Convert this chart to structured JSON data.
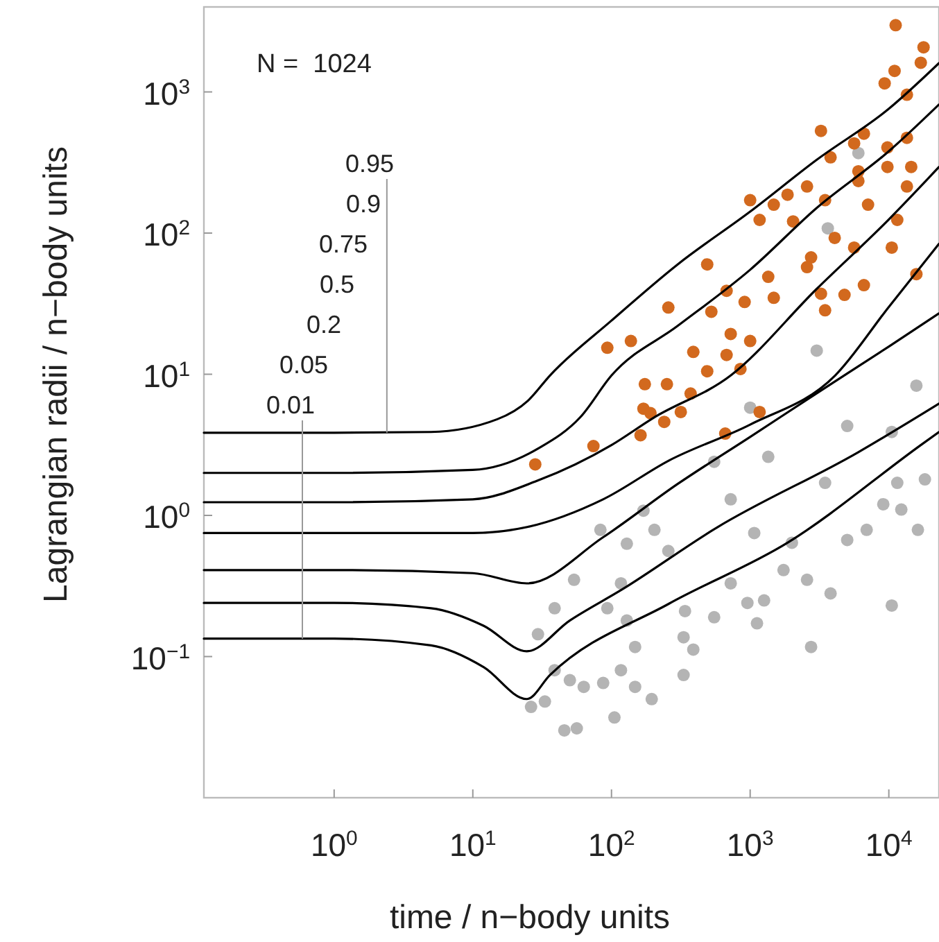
{
  "chart_data": {
    "type": "line",
    "xlabel": "time / n−body units",
    "ylabel": "Lagrangian radii / n−body units",
    "log": "xy",
    "grid": false,
    "line_style": "solid",
    "xlim": [
      0.115,
      23000
    ],
    "ylim": [
      0.01,
      4000
    ],
    "xticks": [
      {
        "value": 1,
        "label": "10$^{0}$"
      },
      {
        "value": 10,
        "label": "10$^{1}$"
      },
      {
        "value": 100,
        "label": "10$^{2}$"
      },
      {
        "value": 1000,
        "label": "10$^{3}$"
      },
      {
        "value": 10000,
        "label": "10$^{4}$"
      }
    ],
    "yticks": [
      {
        "value": 0.1,
        "label": "10$^{−1}$"
      },
      {
        "value": 1,
        "label": "10$^{0}$"
      },
      {
        "value": 10,
        "label": "10$^{1}$"
      },
      {
        "value": 100,
        "label": "10$^{2}$"
      },
      {
        "value": 1000,
        "label": "10$^{3}$"
      }
    ],
    "annotations": [
      "N =  1024",
      {
        "text": "0.95",
        "x": 2.4,
        "y": 3.85
      },
      "0.9",
      "0.75",
      "0.5",
      "0.2",
      "0.05",
      {
        "text": "0.01",
        "x": 0.59,
        "y": 0.134
      }
    ],
    "series": [
      {
        "type": "scatter",
        "marker": "circle",
        "color": "#b4b4b4",
        "x": [
          6030,
          3630,
          3020,
          15800,
          1000,
          5010,
          10500,
          1350,
          550,
          724,
          3470,
          18200,
          9120,
          12300,
          11500,
          16200,
          5010,
          6920,
          204,
          83.2,
          170,
          129,
          257,
          1070,
          2000,
          2570,
          3800,
          1740,
          10500,
          2750,
          1120,
          955,
          550,
          339,
          331,
          389,
          117,
          93.3,
          53.7,
          38.9,
          29.5,
          129,
          148,
          117,
          331,
          148,
          87.1,
          63.1,
          50.1,
          38.9,
          195,
          105,
          45.7,
          56.2,
          26.3,
          33.1,
          724,
          1260
        ],
        "values": [
          369,
          108,
          14.7,
          8.3,
          5.8,
          4.3,
          3.9,
          2.6,
          2.4,
          1.3,
          1.7,
          1.8,
          1.2,
          1.1,
          1.7,
          0.79,
          0.67,
          0.79,
          0.79,
          0.79,
          1.08,
          0.63,
          0.56,
          0.75,
          0.64,
          0.35,
          0.28,
          0.41,
          0.23,
          0.117,
          0.172,
          0.24,
          0.19,
          0.21,
          0.137,
          0.112,
          0.33,
          0.22,
          0.35,
          0.22,
          0.144,
          0.18,
          0.117,
          0.08,
          0.074,
          0.061,
          0.065,
          0.061,
          0.068,
          0.08,
          0.05,
          0.037,
          0.03,
          0.031,
          0.044,
          0.048,
          0.33,
          0.25
        ]
      },
      {
        "type": "scatter",
        "marker": "circle",
        "color": "#d2691e",
        "x": [
          11200,
          17800,
          17000,
          11000,
          9330,
          13500,
          3240,
          6610,
          5620,
          13500,
          9770,
          3800,
          6030,
          9770,
          14500,
          2570,
          1860,
          1000,
          1480,
          1170,
          3470,
          6030,
          13500,
          7080,
          11500,
          2040,
          4070,
          2750,
          5620,
          10500,
          2570,
          490,
          1350,
          3240,
          4790,
          6610,
          15800,
          676,
          912,
          257,
          525,
          3470,
          1480,
          724,
          1000,
          93.3,
          138,
          389,
          676,
          490,
          851,
          174,
          251,
          372,
          170,
          191,
          316,
          240,
          162,
          74.1,
          28.2,
          661,
          1170
        ],
        "values": [
          2970,
          2070,
          1610,
          1410,
          1150,
          955,
          530,
          506,
          432,
          473,
          404,
          344,
          274,
          294,
          294,
          214,
          187,
          171,
          159,
          124,
          171,
          234,
          214,
          159,
          124,
          121,
          92.5,
          67.3,
          78.9,
          78.9,
          57.4,
          60,
          49,
          37.2,
          36.5,
          42.8,
          51.2,
          39,
          32.5,
          29.7,
          27.7,
          28.4,
          34.8,
          19.3,
          17.2,
          15.4,
          17.2,
          14.4,
          13.7,
          10.5,
          10.9,
          8.5,
          8.5,
          7.3,
          5.7,
          5.3,
          5.4,
          4.6,
          3.7,
          3.1,
          2.3,
          3.8,
          5.4
        ]
      },
      {
        "color": "#000000",
        "x": [
          0.115,
          1,
          5,
          15,
          25,
          36,
          100,
          300,
          1000,
          3000,
          10000,
          23000
        ],
        "values": [
          3.85,
          3.85,
          3.9,
          4.8,
          6.5,
          9.8,
          24,
          60,
          142,
          329,
          760,
          1600
        ]
      },
      {
        "color": "#000000",
        "x": [
          0.115,
          1,
          10,
          30,
          60,
          100,
          300,
          1000,
          3000,
          10000,
          23000
        ],
        "values": [
          2,
          2,
          2.1,
          3,
          5,
          9.8,
          22,
          55,
          150,
          380,
          815
        ]
      },
      {
        "color": "#000000",
        "x": [
          0.115,
          1,
          10,
          30,
          100,
          200,
          724,
          3000,
          10000,
          23000
        ],
        "values": [
          1.24,
          1.24,
          1.3,
          1.78,
          3.15,
          4.9,
          9.8,
          40,
          125,
          294
        ]
      },
      {
        "color": "#000000",
        "x": [
          0.115,
          1,
          10,
          25,
          87,
          260,
          1000,
          4100,
          10000,
          23000
        ],
        "values": [
          0.75,
          0.75,
          0.75,
          0.83,
          1.3,
          2.45,
          4.4,
          9.8,
          30,
          84
        ]
      },
      {
        "color": "#000000",
        "x": [
          0.115,
          1,
          10,
          24.5,
          87,
          300,
          1000,
          3000,
          10000,
          23000
        ],
        "values": [
          0.41,
          0.41,
          0.39,
          0.33,
          0.7,
          1.67,
          3.6,
          7.3,
          15.7,
          27
        ]
      },
      {
        "color": "#000000",
        "x": [
          0.115,
          1,
          5,
          12,
          24.5,
          50,
          120,
          575,
          6000,
          23000
        ],
        "values": [
          0.24,
          0.24,
          0.22,
          0.165,
          0.109,
          0.18,
          0.3,
          0.82,
          2.8,
          6.2
        ]
      },
      {
        "color": "#000000",
        "x": [
          0.115,
          1,
          5,
          12,
          24.5,
          36,
          260,
          1860,
          17000,
          23000
        ],
        "values": [
          0.134,
          0.134,
          0.12,
          0.084,
          0.05,
          0.074,
          0.237,
          0.64,
          3.15,
          3.9
        ]
      }
    ]
  }
}
